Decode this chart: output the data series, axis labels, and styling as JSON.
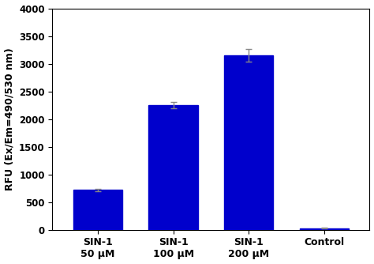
{
  "categories": [
    "SIN-1\n50 μM",
    "SIN-1\n100 μM",
    "SIN-1\n200 μM",
    "Control"
  ],
  "values": [
    720,
    2250,
    3150,
    30
  ],
  "errors": [
    25,
    60,
    120,
    5
  ],
  "bar_color": "#0000CC",
  "bar_width": 0.65,
  "ylim": [
    0,
    4000
  ],
  "yticks": [
    0,
    500,
    1000,
    1500,
    2000,
    2500,
    3000,
    3500,
    4000
  ],
  "ylabel": "RFU (Ex/Em=490/530 nm)",
  "ylabel_fontsize": 9,
  "tick_fontsize": 8.5,
  "xlabel_fontsize": 9,
  "background_color": "#ffffff",
  "error_color": "#888888",
  "error_capsize": 3,
  "error_linewidth": 1.0
}
